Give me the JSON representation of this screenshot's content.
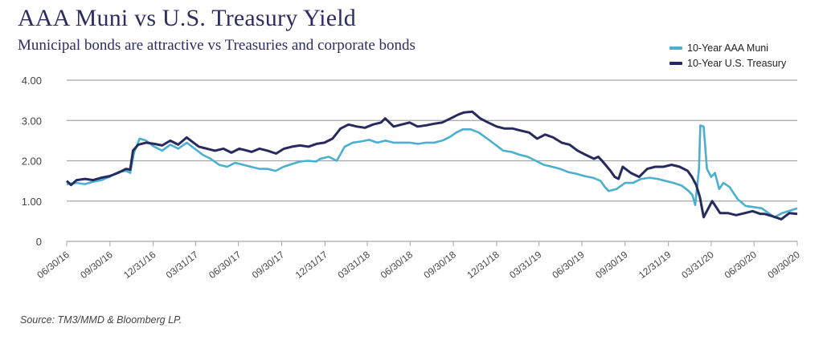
{
  "header": {
    "title": "AAA Muni vs U.S. Treasury Yield",
    "subtitle": "Municipal bonds are attractive vs Treasuries and corporate bonds"
  },
  "footer": {
    "source": "Source: TM3/MMD & Bloomberg LP."
  },
  "colors": {
    "muni": "#4bafd0",
    "treasury": "#262a5e",
    "grid": "#a6a6a6",
    "text": "#2b2d63"
  },
  "chart_data": {
    "type": "line",
    "title": "AAA Muni vs U.S. Treasury Yield",
    "subtitle": "Municipal bonds are attractive vs Treasuries and corporate bonds",
    "xlabel": "",
    "ylabel": "",
    "ylim": [
      0,
      4
    ],
    "xlim": [
      "2016-06-30",
      "2020-09-30"
    ],
    "grid": true,
    "legend_position": "top-right",
    "y_ticks": [
      "0",
      "1.00",
      "2.00",
      "3.00",
      "4.00"
    ],
    "y_tick_values": [
      0,
      1,
      2,
      3,
      4
    ],
    "x_ticks": [
      "06/30/16",
      "09/30/16",
      "12/31/16",
      "03/31/17",
      "06/30/17",
      "09/30/17",
      "12/31/17",
      "03/31/18",
      "06/30/18",
      "09/30/18",
      "12/31/18",
      "03/31/19",
      "06/30/19",
      "09/30/19",
      "12/31/19",
      "03/31/20",
      "06/30/20",
      "09/30/20"
    ],
    "x_tick_dates": [
      "2016-06-30",
      "2016-09-30",
      "2016-12-31",
      "2017-03-31",
      "2017-06-30",
      "2017-09-30",
      "2017-12-31",
      "2018-03-31",
      "2018-06-30",
      "2018-09-30",
      "2018-12-31",
      "2019-03-31",
      "2019-06-30",
      "2019-09-30",
      "2019-12-31",
      "2020-03-31",
      "2020-06-30",
      "2020-09-30"
    ],
    "series": [
      {
        "name": "10-Year AAA Muni",
        "color": "#4bafd0",
        "x": [
          "2016-06-30",
          "2016-07-21",
          "2016-08-08",
          "2016-08-25",
          "2016-09-12",
          "2016-09-29",
          "2016-10-17",
          "2016-11-03",
          "2016-11-12",
          "2016-11-20",
          "2016-12-02",
          "2016-12-16",
          "2017-01-02",
          "2017-01-19",
          "2017-02-05",
          "2017-02-22",
          "2017-03-12",
          "2017-03-29",
          "2017-04-15",
          "2017-05-02",
          "2017-05-20",
          "2017-06-06",
          "2017-06-23",
          "2017-07-10",
          "2017-07-27",
          "2017-08-14",
          "2017-08-31",
          "2017-09-17",
          "2017-10-04",
          "2017-10-22",
          "2017-11-08",
          "2017-11-25",
          "2017-12-12",
          "2017-12-21",
          "2018-01-08",
          "2018-01-25",
          "2018-02-11",
          "2018-02-28",
          "2018-03-18",
          "2018-04-04",
          "2018-04-21",
          "2018-05-09",
          "2018-05-26",
          "2018-06-12",
          "2018-06-29",
          "2018-07-17",
          "2018-08-03",
          "2018-08-20",
          "2018-09-06",
          "2018-09-24",
          "2018-10-06",
          "2018-10-20",
          "2018-11-06",
          "2018-11-23",
          "2018-12-11",
          "2018-12-28",
          "2019-01-14",
          "2019-01-31",
          "2019-02-18",
          "2019-03-07",
          "2019-03-24",
          "2019-04-10",
          "2019-04-28",
          "2019-05-15",
          "2019-06-01",
          "2019-06-18",
          "2019-07-06",
          "2019-07-23",
          "2019-08-09",
          "2019-08-18",
          "2019-08-26",
          "2019-09-12",
          "2019-09-30",
          "2019-10-17",
          "2019-11-03",
          "2019-11-21",
          "2019-12-08",
          "2019-12-25",
          "2020-01-11",
          "2020-01-29",
          "2020-02-12",
          "2020-02-20",
          "2020-02-26",
          "2020-03-05",
          "2020-03-08",
          "2020-03-15",
          "2020-03-22",
          "2020-03-31",
          "2020-04-08",
          "2020-04-17",
          "2020-04-26",
          "2020-05-09",
          "2020-05-26",
          "2020-06-12",
          "2020-06-30",
          "2020-07-17",
          "2020-07-25",
          "2020-08-12",
          "2020-08-29",
          "2020-09-30"
        ],
        "values": [
          1.42,
          1.45,
          1.42,
          1.48,
          1.52,
          1.6,
          1.72,
          1.75,
          1.7,
          2.2,
          2.55,
          2.5,
          2.35,
          2.25,
          2.4,
          2.3,
          2.45,
          2.3,
          2.15,
          2.05,
          1.9,
          1.85,
          1.95,
          1.9,
          1.85,
          1.8,
          1.8,
          1.75,
          1.85,
          1.92,
          1.98,
          2.0,
          1.98,
          2.05,
          2.1,
          2.0,
          2.35,
          2.45,
          2.48,
          2.52,
          2.45,
          2.5,
          2.45,
          2.45,
          2.45,
          2.42,
          2.45,
          2.45,
          2.5,
          2.6,
          2.7,
          2.78,
          2.78,
          2.7,
          2.55,
          2.4,
          2.25,
          2.22,
          2.15,
          2.1,
          2.0,
          1.9,
          1.85,
          1.8,
          1.72,
          1.68,
          1.62,
          1.58,
          1.5,
          1.35,
          1.25,
          1.3,
          1.45,
          1.45,
          1.55,
          1.58,
          1.55,
          1.5,
          1.45,
          1.38,
          1.25,
          1.15,
          0.9,
          1.8,
          2.88,
          2.85,
          1.8,
          1.6,
          1.7,
          1.3,
          1.45,
          1.35,
          1.05,
          0.88,
          0.85,
          0.82,
          0.75,
          0.6,
          0.7,
          0.82
        ]
      },
      {
        "name": "10-Year U.S. Treasury",
        "color": "#262a5e",
        "x": [
          "2016-06-30",
          "2016-07-09",
          "2016-07-21",
          "2016-08-08",
          "2016-08-25",
          "2016-09-12",
          "2016-09-29",
          "2016-10-17",
          "2016-11-03",
          "2016-11-12",
          "2016-11-18",
          "2016-11-29",
          "2016-12-16",
          "2017-01-02",
          "2017-01-19",
          "2017-02-05",
          "2017-02-22",
          "2017-03-12",
          "2017-03-21",
          "2017-04-07",
          "2017-04-24",
          "2017-05-11",
          "2017-05-29",
          "2017-06-15",
          "2017-07-02",
          "2017-07-19",
          "2017-07-28",
          "2017-08-14",
          "2017-08-31",
          "2017-09-18",
          "2017-10-05",
          "2017-10-22",
          "2017-11-08",
          "2017-11-26",
          "2017-12-13",
          "2017-12-30",
          "2018-01-16",
          "2018-02-02",
          "2018-02-19",
          "2018-03-09",
          "2018-03-26",
          "2018-04-12",
          "2018-04-29",
          "2018-05-08",
          "2018-05-26",
          "2018-06-12",
          "2018-06-29",
          "2018-07-16",
          "2018-08-03",
          "2018-08-20",
          "2018-09-06",
          "2018-09-24",
          "2018-10-11",
          "2018-10-23",
          "2018-11-09",
          "2018-11-26",
          "2018-12-13",
          "2018-12-31",
          "2019-01-17",
          "2019-02-03",
          "2019-02-20",
          "2019-03-10",
          "2019-03-27",
          "2019-04-13",
          "2019-04-30",
          "2019-05-18",
          "2019-06-04",
          "2019-06-21",
          "2019-07-08",
          "2019-07-26",
          "2019-08-04",
          "2019-08-12",
          "2019-08-30",
          "2019-09-08",
          "2019-09-16",
          "2019-09-25",
          "2019-10-12",
          "2019-10-30",
          "2019-11-16",
          "2019-12-03",
          "2019-12-20",
          "2020-01-07",
          "2020-01-24",
          "2020-02-10",
          "2020-02-19",
          "2020-02-28",
          "2020-03-07",
          "2020-03-15",
          "2020-04-02",
          "2020-04-19",
          "2020-05-06",
          "2020-05-23",
          "2020-06-10",
          "2020-06-27",
          "2020-07-14",
          "2020-07-23",
          "2020-08-09",
          "2020-08-27",
          "2020-09-13",
          "2020-09-30"
        ],
        "values": [
          1.5,
          1.4,
          1.52,
          1.55,
          1.52,
          1.58,
          1.62,
          1.7,
          1.8,
          1.78,
          2.25,
          2.4,
          2.45,
          2.42,
          2.38,
          2.5,
          2.4,
          2.58,
          2.5,
          2.35,
          2.3,
          2.25,
          2.3,
          2.2,
          2.3,
          2.25,
          2.22,
          2.3,
          2.25,
          2.18,
          2.3,
          2.35,
          2.38,
          2.35,
          2.42,
          2.45,
          2.55,
          2.8,
          2.9,
          2.85,
          2.82,
          2.9,
          2.95,
          3.05,
          2.85,
          2.9,
          2.95,
          2.85,
          2.88,
          2.92,
          2.95,
          3.05,
          3.15,
          3.2,
          3.22,
          3.05,
          2.95,
          2.85,
          2.8,
          2.8,
          2.75,
          2.7,
          2.55,
          2.65,
          2.58,
          2.45,
          2.4,
          2.25,
          2.15,
          2.05,
          2.1,
          2.0,
          1.75,
          1.6,
          1.55,
          1.85,
          1.7,
          1.6,
          1.8,
          1.85,
          1.85,
          1.9,
          1.85,
          1.75,
          1.6,
          1.4,
          1.1,
          0.6,
          1.0,
          0.7,
          0.7,
          0.65,
          0.7,
          0.75,
          0.68,
          0.68,
          0.62,
          0.55,
          0.7,
          0.68
        ]
      }
    ]
  }
}
